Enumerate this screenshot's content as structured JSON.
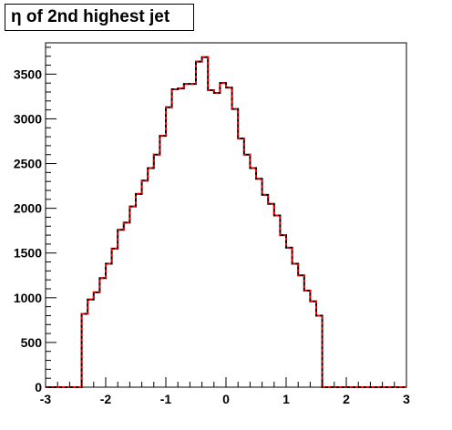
{
  "chart_data": {
    "type": "histogram",
    "title": "η of 2nd highest jet",
    "xlabel": "",
    "ylabel": "",
    "xlim": [
      -3,
      3
    ],
    "ylim": [
      0,
      3850
    ],
    "bin_width": 0.1,
    "x_ticks": [
      "-3",
      "-2",
      "-1",
      "0",
      "1",
      "2",
      "3"
    ],
    "y_ticks": [
      "0",
      "500",
      "1000",
      "1500",
      "2000",
      "2500",
      "3000",
      "3500"
    ],
    "grid": false,
    "legend": "none",
    "x": [
      -3.0,
      -2.9,
      -2.8,
      -2.7,
      -2.6,
      -2.5,
      -2.4,
      -2.3,
      -2.2,
      -2.1,
      -2.0,
      -1.9,
      -1.8,
      -1.7,
      -1.6,
      -1.5,
      -1.4,
      -1.3,
      -1.2,
      -1.1,
      -1.0,
      -0.9,
      -0.8,
      -0.7,
      -0.6,
      -0.5,
      -0.4,
      -0.3,
      -0.2,
      -0.1,
      0.0,
      0.1,
      0.2,
      0.3,
      0.4,
      0.5,
      0.6,
      0.7,
      0.8,
      0.9,
      1.0,
      1.1,
      1.2,
      1.3,
      1.4,
      1.5,
      1.6,
      1.7,
      1.8,
      1.9,
      2.0,
      2.1,
      2.2,
      2.3,
      2.4,
      2.5,
      2.6,
      2.7,
      2.8,
      2.9
    ],
    "series": [
      {
        "color": "#000000",
        "values": [
          0,
          0,
          0,
          0,
          0,
          0,
          820,
          980,
          1060,
          1220,
          1380,
          1550,
          1760,
          1840,
          2020,
          2160,
          2310,
          2450,
          2600,
          2810,
          3130,
          3330,
          3340,
          3390,
          3390,
          3640,
          3690,
          3320,
          3290,
          3400,
          3350,
          3110,
          2780,
          2600,
          2450,
          2330,
          2150,
          2050,
          1920,
          1700,
          1560,
          1380,
          1250,
          1080,
          960,
          800,
          0,
          0,
          0,
          0,
          0,
          0,
          0,
          0,
          0,
          0,
          0,
          0,
          0,
          0
        ]
      },
      {
        "color": "#ff0000",
        "dashed": true,
        "values": [
          0,
          0,
          0,
          0,
          0,
          0,
          820,
          980,
          1060,
          1220,
          1380,
          1550,
          1760,
          1840,
          2020,
          2160,
          2310,
          2450,
          2600,
          2810,
          3130,
          3330,
          3340,
          3390,
          3390,
          3640,
          3690,
          3320,
          3290,
          3400,
          3350,
          3110,
          2780,
          2600,
          2450,
          2330,
          2150,
          2050,
          1920,
          1700,
          1560,
          1380,
          1250,
          1080,
          960,
          800,
          0,
          0,
          0,
          0,
          0,
          0,
          0,
          0,
          0,
          0,
          0,
          0,
          0,
          0
        ]
      }
    ]
  }
}
